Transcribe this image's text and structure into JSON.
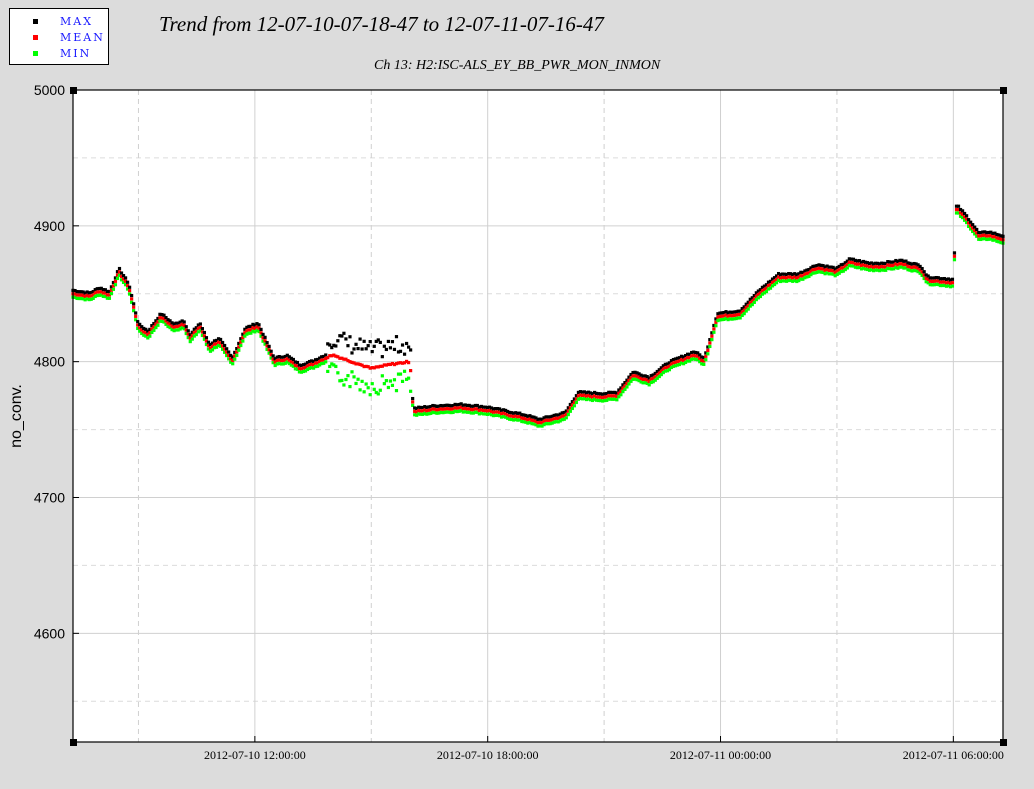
{
  "legend": {
    "items": [
      {
        "label": "MAX",
        "color": "#000000"
      },
      {
        "label": "MEAN",
        "color": "#ff0000"
      },
      {
        "label": "MIN",
        "color": "#00ff00"
      }
    ]
  },
  "chart_data": {
    "type": "scatter",
    "title": "Trend from 12-07-10-07-18-47 to 12-07-11-07-16-47",
    "subtitle": "Ch 13: H2:ISC-ALS_EY_BB_PWR_MON_INMON",
    "ylabel": "no_conv.",
    "xlabel": "",
    "xlim": [
      "2012-07-10 07:18:47",
      "2012-07-11 07:16:47"
    ],
    "ylim": [
      4520,
      5000
    ],
    "yticks": [
      4600,
      4700,
      4800,
      4900,
      5000
    ],
    "xticks": [
      {
        "label": "2012-07-10 12:00:00",
        "t": "2012-07-10 12:00:00"
      },
      {
        "label": "2012-07-10 18:00:00",
        "t": "2012-07-10 18:00:00"
      },
      {
        "label": "2012-07-11 00:00:00",
        "t": "2012-07-11 00:00:00"
      },
      {
        "label": "2012-07-11 06:00:00",
        "t": "2012-07-11 06:00:00"
      }
    ],
    "grid": true,
    "legend_position": "top-left",
    "series": [
      {
        "name": "MAX",
        "color": "#000000"
      },
      {
        "name": "MEAN",
        "color": "#ff0000"
      },
      {
        "name": "MIN",
        "color": "#00ff00"
      }
    ],
    "mean_profile": [
      [
        "2012-07-10 07:18:47",
        4850
      ],
      [
        "2012-07-10 07:45:00",
        4848
      ],
      [
        "2012-07-10 08:00:00",
        4852
      ],
      [
        "2012-07-10 08:15:00",
        4849
      ],
      [
        "2012-07-10 08:30:00",
        4866
      ],
      [
        "2012-07-10 08:45:00",
        4855
      ],
      [
        "2012-07-10 09:00:00",
        4825
      ],
      [
        "2012-07-10 09:15:00",
        4820
      ],
      [
        "2012-07-10 09:35:00",
        4833
      ],
      [
        "2012-07-10 09:55:00",
        4825
      ],
      [
        "2012-07-10 10:10:00",
        4828
      ],
      [
        "2012-07-10 10:20:00",
        4817
      ],
      [
        "2012-07-10 10:35:00",
        4826
      ],
      [
        "2012-07-10 10:50:00",
        4810
      ],
      [
        "2012-07-10 11:05:00",
        4815
      ],
      [
        "2012-07-10 11:25:00",
        4800
      ],
      [
        "2012-07-10 11:45:00",
        4822
      ],
      [
        "2012-07-10 12:05:00",
        4826
      ],
      [
        "2012-07-10 12:30:00",
        4800
      ],
      [
        "2012-07-10 12:50:00",
        4802
      ],
      [
        "2012-07-10 13:10:00",
        4795
      ],
      [
        "2012-07-10 13:30:00",
        4798
      ],
      [
        "2012-07-10 14:00:00",
        4805
      ],
      [
        "2012-07-10 14:30:00",
        4800
      ],
      [
        "2012-07-10 15:00:00",
        4795
      ],
      [
        "2012-07-10 15:30:00",
        4798
      ],
      [
        "2012-07-10 16:00:00",
        4800
      ],
      [
        "2012-07-10 16:05:00",
        4763
      ],
      [
        "2012-07-10 16:40:00",
        4765
      ],
      [
        "2012-07-10 17:20:00",
        4766
      ],
      [
        "2012-07-10 18:00:00",
        4764
      ],
      [
        "2012-07-10 19:00:00",
        4758
      ],
      [
        "2012-07-10 19:20:00",
        4755
      ],
      [
        "2012-07-10 20:00:00",
        4760
      ],
      [
        "2012-07-10 20:20:00",
        4775
      ],
      [
        "2012-07-10 21:00:00",
        4774
      ],
      [
        "2012-07-10 21:20:00",
        4775
      ],
      [
        "2012-07-10 21:45:00",
        4790
      ],
      [
        "2012-07-10 22:10:00",
        4786
      ],
      [
        "2012-07-10 22:40:00",
        4797
      ],
      [
        "2012-07-10 23:20:00",
        4805
      ],
      [
        "2012-07-10 23:35:00",
        4800
      ],
      [
        "2012-07-10 23:55:00",
        4833
      ],
      [
        "2012-07-11 00:30:00",
        4835
      ],
      [
        "2012-07-11 01:00:00",
        4850
      ],
      [
        "2012-07-11 01:30:00",
        4862
      ],
      [
        "2012-07-11 02:00:00",
        4862
      ],
      [
        "2012-07-11 02:30:00",
        4869
      ],
      [
        "2012-07-11 03:00:00",
        4866
      ],
      [
        "2012-07-11 03:20:00",
        4873
      ],
      [
        "2012-07-11 03:50:00",
        4870
      ],
      [
        "2012-07-11 04:10:00",
        4870
      ],
      [
        "2012-07-11 04:40:00",
        4872
      ],
      [
        "2012-07-11 05:10:00",
        4868
      ],
      [
        "2012-07-11 05:20:00",
        4860
      ],
      [
        "2012-07-11 06:00:00",
        4858
      ],
      [
        "2012-07-11 06:05:00",
        4913
      ],
      [
        "2012-07-11 06:20:00",
        4905
      ],
      [
        "2012-07-11 06:40:00",
        4892
      ],
      [
        "2012-07-11 06:55:00",
        4893
      ],
      [
        "2012-07-11 07:16:47",
        4890
      ]
    ]
  }
}
